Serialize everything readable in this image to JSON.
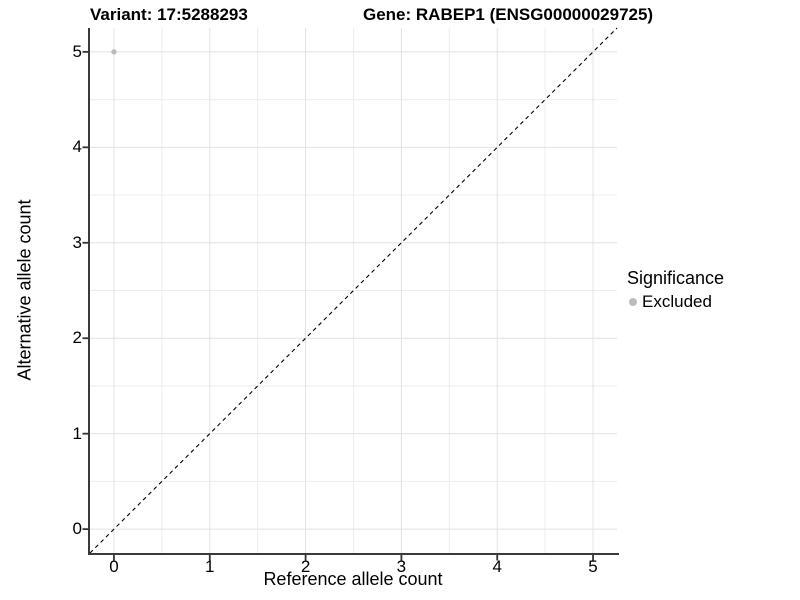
{
  "titles": {
    "variant": "Variant: 17:5288293",
    "gene": "Gene: RABEP1 (ENSG00000029725)"
  },
  "chart_data": {
    "type": "scatter",
    "title_left": "Variant: 17:5288293",
    "title_right": "Gene: RABEP1 (ENSG00000029725)",
    "xlabel": "Reference allele count",
    "ylabel": "Alternative allele count",
    "xlim": [
      -0.25,
      5.25
    ],
    "ylim": [
      -0.25,
      5.25
    ],
    "x_ticks": [
      0,
      1,
      2,
      3,
      4,
      5
    ],
    "y_ticks": [
      0,
      1,
      2,
      3,
      4,
      5
    ],
    "minor_gridlines": [
      0.5,
      1.5,
      2.5,
      3.5,
      4.5
    ],
    "grid": true,
    "legend_position": "right",
    "identity_line": {
      "style": "dashed",
      "slope": 1,
      "intercept": 0,
      "color": "#000000"
    },
    "series": [
      {
        "name": "Excluded",
        "color": "#bcbcbc",
        "points": [
          {
            "x": 0,
            "y": 5
          }
        ]
      }
    ],
    "legend": {
      "title": "Significance",
      "entries": [
        {
          "label": "Excluded",
          "color": "#bcbcbc"
        }
      ]
    }
  },
  "colors": {
    "background": "#ffffff",
    "grid_major": "#e2e2e2",
    "grid_minor": "#ededed",
    "axis_line": "#3a3a3a",
    "tick_mark": "#333333",
    "text": "#000000",
    "point": "#bcbcbc"
  }
}
